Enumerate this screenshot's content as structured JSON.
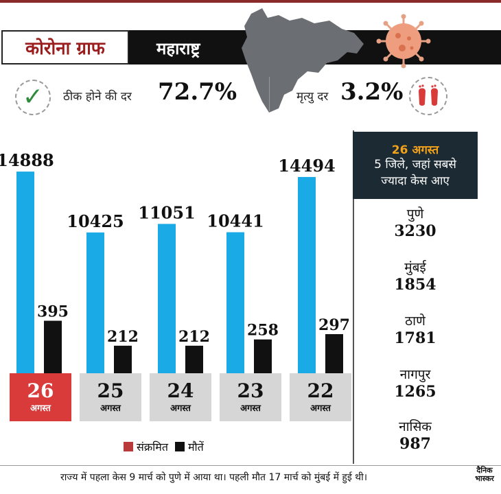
{
  "header": {
    "title": "कोरोना ग्राफ",
    "state": "महाराष्ट्र"
  },
  "rates": {
    "recovery_label": "ठीक होने की दर",
    "recovery_value": "72.7%",
    "death_label": "मृत्यु दर",
    "death_value": "3.2%"
  },
  "colors": {
    "infected": "#1aaae6",
    "deaths": "#111111",
    "active_date": "#d93a3a",
    "inactive_date": "#d6d6d6",
    "legend_infected": "#b83a3a",
    "panel_head": "#1c2a33",
    "accent": "#f3a21a"
  },
  "chart_data": {
    "type": "bar",
    "categories": [
      "26 अगस्त",
      "25 अगस्त",
      "24 अगस्त",
      "23 अगस्त",
      "22 अगस्त"
    ],
    "dates": [
      {
        "day": "26",
        "month": "अगस्त"
      },
      {
        "day": "25",
        "month": "अगस्त"
      },
      {
        "day": "24",
        "month": "अगस्त"
      },
      {
        "day": "23",
        "month": "अगस्त"
      },
      {
        "day": "22",
        "month": "अगस्त"
      }
    ],
    "series": [
      {
        "name": "संक्रमित",
        "values": [
          14888,
          10425,
          11051,
          10441,
          14494
        ]
      },
      {
        "name": "मौतें",
        "values": [
          395,
          212,
          212,
          258,
          297
        ]
      }
    ],
    "death_scale_max": 1600,
    "ylim": [
      0,
      16000
    ]
  },
  "legend": {
    "infected": "संक्रमित",
    "deaths": "मौतें"
  },
  "side_panel": {
    "date": "26 अगस्त",
    "subtitle_line1": "5 जिले, जहां सबसे",
    "subtitle_line2": "ज्यादा केस आए",
    "districts": [
      {
        "name": "पुणे",
        "cases": "3230"
      },
      {
        "name": "मुंबई",
        "cases": "1854"
      },
      {
        "name": "ठाणे",
        "cases": "1781"
      },
      {
        "name": "नागपुर",
        "cases": "1265"
      },
      {
        "name": "नासिक",
        "cases": "987"
      }
    ]
  },
  "footnote": "राज्य में पहला केस 9 मार्च को पुणे में आया था। पहली मौत 17 मार्च को मुंबई में हुई थी।",
  "logo": {
    "line1": "दैनिक",
    "line2": "भास्कर"
  }
}
